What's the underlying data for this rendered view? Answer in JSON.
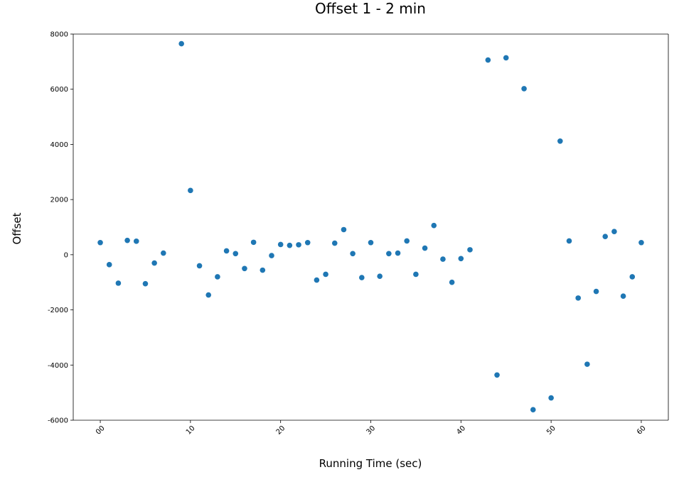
{
  "chart_data": {
    "type": "scatter",
    "title": "Offset 1 - 2 min",
    "xlabel": "Running Time (sec)",
    "ylabel": "Offset",
    "xlim": [
      -3,
      63
    ],
    "ylim": [
      -6000,
      8000
    ],
    "x_ticks": [
      0,
      10,
      20,
      30,
      40,
      50,
      60
    ],
    "x_tick_labels": [
      "00",
      "10",
      "20",
      "30",
      "40",
      "50",
      "60"
    ],
    "y_ticks": [
      -6000,
      -4000,
      -2000,
      0,
      2000,
      4000,
      6000,
      8000
    ],
    "y_tick_labels": [
      "-6000",
      "-4000",
      "-2000",
      "0",
      "2000",
      "4000",
      "6000",
      "8000"
    ],
    "grid": false,
    "marker_color": "#1f77b4",
    "points": [
      {
        "x": 0,
        "y": 440
      },
      {
        "x": 1,
        "y": -360
      },
      {
        "x": 2,
        "y": -1030
      },
      {
        "x": 3,
        "y": 520
      },
      {
        "x": 4,
        "y": 490
      },
      {
        "x": 5,
        "y": -1050
      },
      {
        "x": 6,
        "y": -300
      },
      {
        "x": 7,
        "y": 60
      },
      {
        "x": 9,
        "y": 7650
      },
      {
        "x": 10,
        "y": 2330
      },
      {
        "x": 11,
        "y": -400
      },
      {
        "x": 12,
        "y": -1460
      },
      {
        "x": 13,
        "y": -800
      },
      {
        "x": 14,
        "y": 140
      },
      {
        "x": 15,
        "y": 40
      },
      {
        "x": 16,
        "y": -500
      },
      {
        "x": 17,
        "y": 450
      },
      {
        "x": 18,
        "y": -560
      },
      {
        "x": 19,
        "y": -30
      },
      {
        "x": 20,
        "y": 370
      },
      {
        "x": 21,
        "y": 340
      },
      {
        "x": 22,
        "y": 360
      },
      {
        "x": 23,
        "y": 440
      },
      {
        "x": 24,
        "y": -920
      },
      {
        "x": 25,
        "y": -710
      },
      {
        "x": 26,
        "y": 420
      },
      {
        "x": 27,
        "y": 910
      },
      {
        "x": 28,
        "y": 40
      },
      {
        "x": 29,
        "y": -830
      },
      {
        "x": 30,
        "y": 440
      },
      {
        "x": 31,
        "y": -780
      },
      {
        "x": 32,
        "y": 40
      },
      {
        "x": 33,
        "y": 60
      },
      {
        "x": 34,
        "y": 500
      },
      {
        "x": 35,
        "y": -710
      },
      {
        "x": 36,
        "y": 240
      },
      {
        "x": 37,
        "y": 1060
      },
      {
        "x": 38,
        "y": -160
      },
      {
        "x": 39,
        "y": -1000
      },
      {
        "x": 40,
        "y": -140
      },
      {
        "x": 41,
        "y": 180
      },
      {
        "x": 43,
        "y": 7060
      },
      {
        "x": 44,
        "y": -4360
      },
      {
        "x": 45,
        "y": 7140
      },
      {
        "x": 47,
        "y": 6020
      },
      {
        "x": 48,
        "y": -5620
      },
      {
        "x": 50,
        "y": -5190
      },
      {
        "x": 51,
        "y": 4120
      },
      {
        "x": 52,
        "y": 500
      },
      {
        "x": 53,
        "y": -1570
      },
      {
        "x": 54,
        "y": -3970
      },
      {
        "x": 55,
        "y": -1330
      },
      {
        "x": 56,
        "y": 660
      },
      {
        "x": 57,
        "y": 840
      },
      {
        "x": 58,
        "y": -1500
      },
      {
        "x": 59,
        "y": -800
      },
      {
        "x": 60,
        "y": 440
      }
    ]
  }
}
